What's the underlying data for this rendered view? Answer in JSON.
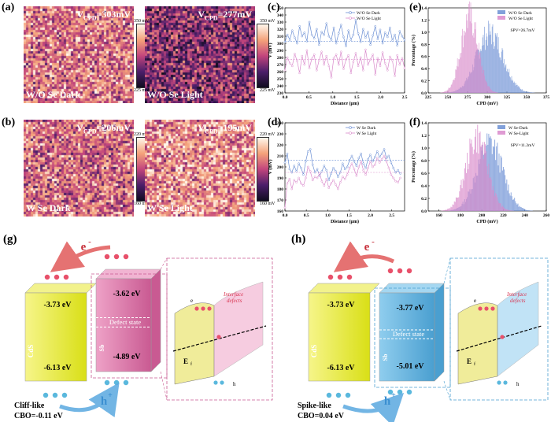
{
  "panels": {
    "a": {
      "label": "(a)",
      "dark_value": "V",
      "dark_sub": "CPD",
      "dark_num": "=303mV",
      "dark_caption": "W/O Se Dark",
      "light_num": "=277mV",
      "light_caption": "W/O Se Light",
      "scale_top": "350 mV",
      "scale_bot": "225 mV"
    },
    "b": {
      "label": "(b)",
      "dark_num": "=206mV",
      "dark_caption": "W Se Dark",
      "light_num": "=195mV",
      "light_caption": "W Se Light",
      "scale_top": "220 mV",
      "scale_bot": "160 mV"
    },
    "c": {
      "label": "(c)"
    },
    "d": {
      "label": "(d)"
    },
    "e": {
      "label": "(e)",
      "spv": "SPV=26.7mV"
    },
    "f": {
      "label": "(f)",
      "spv": "SPV=11.2mV"
    },
    "g": {
      "label": "(g)"
    },
    "h": {
      "label": "(h)"
    }
  },
  "colors": {
    "dark": "#6b8fd4",
    "light": "#d98acb",
    "cds": "#e6ea2a",
    "sbse_pink": "#e487b8",
    "sbse_blue": "#66b9e4"
  },
  "chart_data": [
    {
      "id": "c",
      "type": "line",
      "xlabel": "Distance (μm)",
      "ylabel": "V (mV)",
      "xlim": [
        0.0,
        2.5
      ],
      "ylim": [
        230,
        350
      ],
      "xticks": [
        "0.0",
        "0.5",
        "1.0",
        "1.5",
        "2.0",
        "2.5"
      ],
      "yticks": [
        "230",
        "240",
        "250",
        "260",
        "270",
        "280",
        "290",
        "300",
        "310",
        "320",
        "330",
        "340",
        "350"
      ],
      "series": [
        {
          "name": "W/O Se Dark",
          "color": "#6b8fd4",
          "mean": 303,
          "values": [
            302,
            312,
            305,
            318,
            308,
            300,
            324,
            310,
            315,
            303,
            330,
            312,
            307,
            320,
            298,
            316,
            312,
            328,
            310,
            305,
            322,
            300,
            314,
            326,
            309,
            296,
            318,
            305,
            312,
            333,
            314,
            302,
            320,
            308,
            316,
            298,
            311,
            324,
            306,
            319,
            300,
            315,
            309,
            322,
            304,
            312,
            297,
            317,
            310,
            305
          ]
        },
        {
          "name": "W/O Se Light",
          "color": "#d98acb",
          "mean": 277,
          "values": [
            262,
            280,
            272,
            268,
            285,
            275,
            258,
            282,
            270,
            290,
            265,
            278,
            284,
            262,
            276,
            288,
            270,
            282,
            268,
            252,
            279,
            284,
            270,
            288,
            264,
            277,
            283,
            258,
            274,
            286,
            268,
            280,
            262,
            291,
            270,
            277,
            284,
            256,
            279,
            268,
            287,
            272,
            262,
            281,
            276,
            254,
            283,
            270,
            279,
            265
          ]
        }
      ]
    },
    {
      "id": "d",
      "type": "line",
      "xlabel": "Distance (μm)",
      "ylabel": "V (mV)",
      "xlim": [
        0.0,
        2.8
      ],
      "ylim": [
        160,
        240
      ],
      "xticks": [
        "0.0",
        "0.5",
        "1.0",
        "1.5",
        "2.0",
        "2.5"
      ],
      "yticks": [
        "160",
        "170",
        "180",
        "190",
        "200",
        "210",
        "220",
        "230",
        "240"
      ],
      "series": [
        {
          "name": "W Se Dark",
          "color": "#6b8fd4",
          "mean": 206,
          "values": [
            204,
            212,
            198,
            195,
            201,
            196,
            203,
            199,
            193,
            205,
            214,
            216,
            202,
            195,
            198,
            192,
            196,
            201,
            197,
            188,
            194,
            199,
            196,
            191,
            195,
            203,
            198,
            200,
            206,
            210,
            205,
            201,
            208,
            212,
            203,
            199,
            207,
            211,
            205,
            209,
            214,
            209,
            212,
            216,
            208,
            210,
            204,
            199,
            195,
            197,
            194
          ]
        },
        {
          "name": "W Se Light",
          "color": "#d98acb",
          "mean": 195,
          "values": [
            163,
            185,
            189,
            180,
            188,
            186,
            190,
            185,
            183,
            190,
            200,
            196,
            188,
            191,
            190,
            194,
            187,
            183,
            189,
            181,
            185,
            188,
            184,
            180,
            186,
            191,
            189,
            193,
            199,
            203,
            198,
            192,
            200,
            205,
            197,
            193,
            199,
            205,
            200,
            202,
            208,
            204,
            207,
            210,
            205,
            199,
            193,
            190,
            187,
            186,
            190
          ]
        }
      ]
    },
    {
      "id": "e",
      "type": "histogram",
      "xlabel": "CPD (mV)",
      "ylabel": "Percentage (%)",
      "xlim": [
        225,
        375
      ],
      "ylim": [
        0.0,
        1.4
      ],
      "xticks": [
        "225",
        "250",
        "275",
        "300",
        "325",
        "350",
        "375"
      ],
      "yticks": [
        "0.0",
        "0.2",
        "0.4",
        "0.6",
        "0.8",
        "1.0",
        "1.2",
        "1.4"
      ],
      "series": [
        {
          "name": "W/O Se Dark",
          "color": "#6b8fd4",
          "center": 303,
          "sd": 17,
          "peak": 1.0
        },
        {
          "name": "W/O Se Light",
          "color": "#d98acb",
          "center": 277,
          "sd": 11,
          "peak": 1.28
        }
      ]
    },
    {
      "id": "f",
      "type": "histogram",
      "xlabel": "CPD (mV)",
      "ylabel": "Percentage (%)",
      "xlim": [
        150,
        260
      ],
      "ylim": [
        0.0,
        1.4
      ],
      "xticks": [
        "160",
        "180",
        "200",
        "220",
        "240",
        "260"
      ],
      "yticks": [
        "0.0",
        "0.2",
        "0.4",
        "0.6",
        "0.8",
        "1.0",
        "1.2",
        "1.4"
      ],
      "series": [
        {
          "name": "W Se-Dark",
          "color": "#6b8fd4",
          "center": 207,
          "sd": 12,
          "peak": 1.1
        },
        {
          "name": "W Se-Light",
          "color": "#d98acb",
          "center": 195,
          "sd": 10,
          "peak": 1.2
        }
      ]
    }
  ],
  "band_g": {
    "electron": "e",
    "hole": "h",
    "cds_cb": "-3.73 eV",
    "cds_vb": "-6.13 eV",
    "cds_name": "CdS",
    "sb_cb": "-3.62 eV",
    "sb_vb": "-4.89 eV",
    "sb_name": "Sb",
    "defect": "Defect state",
    "interface": "Interface",
    "interface2": "defects",
    "ef": "E",
    "ef_sub": "f",
    "type": "Cliff-like",
    "cbo": "CBO=-0.11 eV"
  },
  "band_h": {
    "electron": "e",
    "hole": "h",
    "cds_cb": "-3.73 eV",
    "cds_vb": "-6.13 eV",
    "cds_name": "CdS",
    "sb_cb": "-3.77 eV",
    "sb_vb": "-5.01 eV",
    "sb_name": "Sb",
    "defect": "Defect state",
    "interface": "Interface",
    "interface2": "defects",
    "ef": "E",
    "ef_sub": "f",
    "type": "Spike-like",
    "cbo": "CBO=0.04 eV"
  }
}
